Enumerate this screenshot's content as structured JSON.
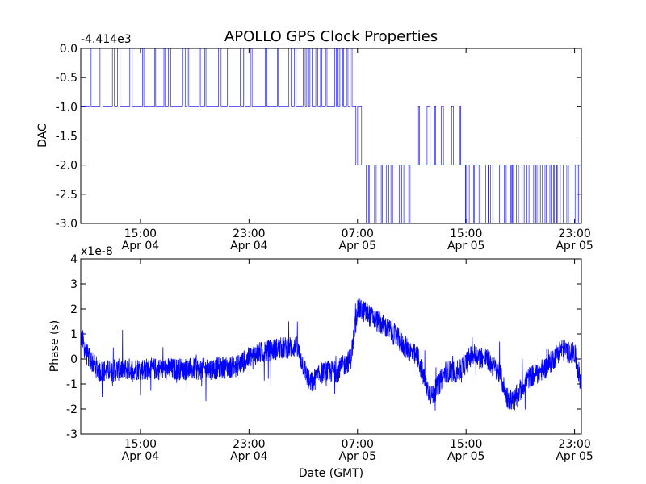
{
  "figure": {
    "title": "APOLLO GPS Clock Properties",
    "xlabel": "Date (GMT)"
  },
  "colors": {
    "line": "#0000ff",
    "axes": "#000000",
    "background": "#ffffff"
  },
  "chart_data": [
    {
      "type": "line",
      "title": "APOLLO GPS Clock Properties",
      "ylabel": "DAC",
      "offset_label": "-4.414e3",
      "x_tick_labels": [
        [
          "15:00",
          "Apr 04"
        ],
        [
          "23:00",
          "Apr 04"
        ],
        [
          "07:00",
          "Apr 05"
        ],
        [
          "15:00",
          "Apr 05"
        ],
        [
          "23:00",
          "Apr 05"
        ]
      ],
      "x_tick_hours": [
        15,
        23,
        31,
        39,
        47
      ],
      "xlim_hours": [
        10.6,
        47.5
      ],
      "y_ticks": [
        0.0,
        -0.5,
        -1.0,
        -1.5,
        -2.0,
        -2.5,
        -3.0
      ],
      "y_tick_labels": [
        "0.0",
        "-0.5",
        "-1.0",
        "-1.5",
        "-2.0",
        "-2.5",
        "-3.0"
      ],
      "ylim": [
        -3.0,
        0.0
      ],
      "grid": false,
      "series": [
        {
          "segments": [
            {
              "t0": 10.6,
              "t1": 25.4,
              "base": -1.0,
              "excursion": 0.0,
              "dwell": 0.6
            },
            {
              "t0": 25.4,
              "t1": 30.6,
              "base": -1.0,
              "excursion": 0.0,
              "dwell": 0.35
            },
            {
              "t0": 30.6,
              "t1": 31.3,
              "base": -1.0,
              "excursion": -2.0,
              "dwell": 0.3
            },
            {
              "t0": 31.3,
              "t1": 35.0,
              "base": -2.0,
              "excursion": -3.0,
              "dwell": 0.3
            },
            {
              "t0": 35.0,
              "t1": 38.6,
              "base": -2.0,
              "excursion": -1.0,
              "dwell": 0.4
            },
            {
              "t0": 38.6,
              "t1": 47.5,
              "base": -2.0,
              "excursion": -3.0,
              "dwell": 0.2
            }
          ]
        }
      ]
    },
    {
      "type": "line",
      "ylabel": "Phase (s)",
      "offset_label": "x1e-8",
      "xlabel": "Date (GMT)",
      "x_tick_labels": [
        [
          "15:00",
          "Apr 04"
        ],
        [
          "23:00",
          "Apr 04"
        ],
        [
          "07:00",
          "Apr 05"
        ],
        [
          "15:00",
          "Apr 05"
        ],
        [
          "23:00",
          "Apr 05"
        ]
      ],
      "x_tick_hours": [
        15,
        23,
        31,
        39,
        47
      ],
      "xlim_hours": [
        10.6,
        47.5
      ],
      "y_ticks": [
        4,
        3,
        2,
        1,
        0,
        -1,
        -2,
        -3
      ],
      "y_tick_labels": [
        "4",
        "3",
        "2",
        "1",
        "0",
        "-1",
        "-2",
        "-3"
      ],
      "ylim": [
        -3,
        4
      ],
      "grid": false,
      "series": [
        {
          "trend_hours": [
            10.6,
            11.0,
            12.0,
            14.0,
            17.0,
            20.0,
            22.0,
            23.5,
            25.0,
            26.5,
            27.5,
            28.5,
            29.5,
            30.5,
            31.0,
            31.5,
            32.5,
            33.5,
            34.5,
            35.5,
            36.0,
            36.5,
            37.5,
            38.5,
            39.5,
            40.5,
            41.5,
            42.0,
            42.5,
            43.5,
            45.0,
            46.0,
            47.0,
            47.5
          ],
          "trend_values": [
            1.0,
            0.2,
            -0.5,
            -0.4,
            -0.4,
            -0.4,
            -0.3,
            0.2,
            0.4,
            0.5,
            -1.0,
            -0.5,
            -0.5,
            0.0,
            2.0,
            1.9,
            1.5,
            1.1,
            0.5,
            0.0,
            -1.0,
            -1.5,
            -0.5,
            -0.5,
            0.2,
            0.0,
            -0.6,
            -1.5,
            -1.7,
            -0.8,
            -0.3,
            0.4,
            0.2,
            -1.0
          ],
          "noise": 0.45
        }
      ]
    }
  ]
}
